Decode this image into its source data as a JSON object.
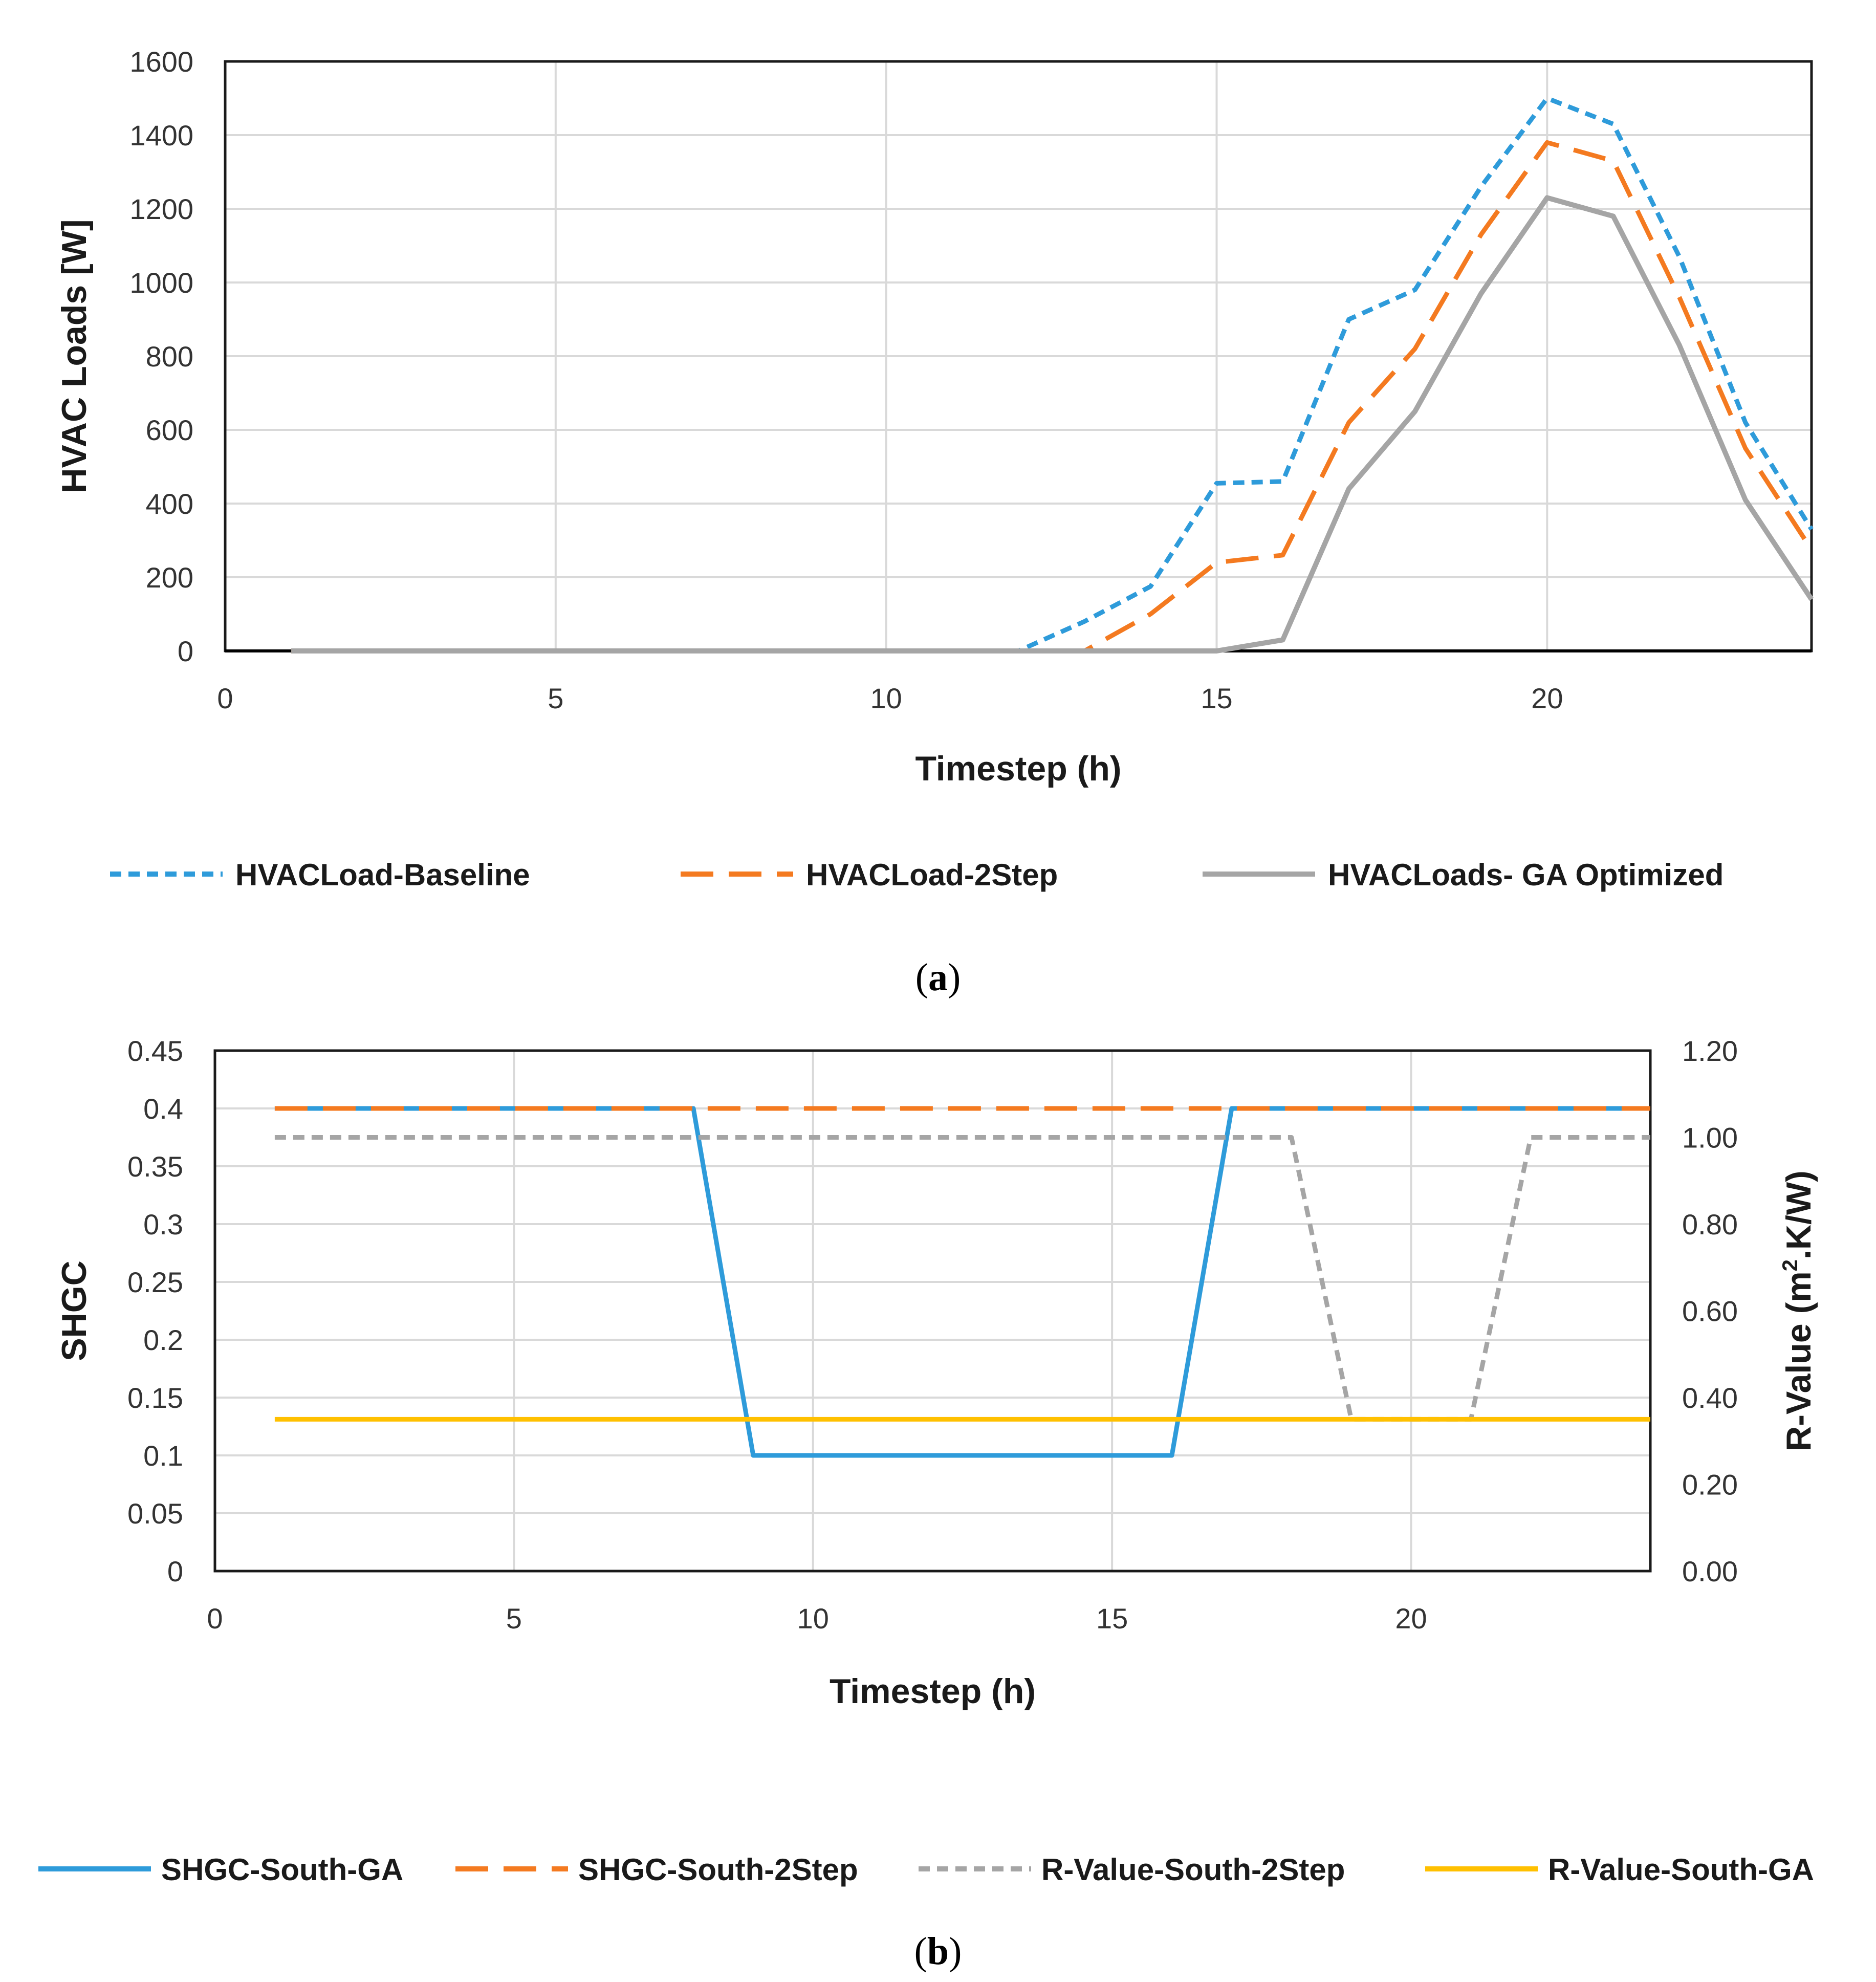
{
  "chart_data": [
    {
      "type": "line",
      "caption_label": "a",
      "xlabel": "Timestep (h)",
      "ylabel": "HVAC Loads [W]",
      "xlim": [
        0,
        24
      ],
      "ylim": [
        0,
        1600
      ],
      "x_ticks": [
        "0",
        "5",
        "10",
        "15",
        "20"
      ],
      "y_ticks": [
        "0",
        "200",
        "400",
        "600",
        "800",
        "1000",
        "1200",
        "1400",
        "1600"
      ],
      "grid": true,
      "legend_position": "bottom",
      "x": [
        1,
        2,
        3,
        4,
        5,
        6,
        7,
        8,
        9,
        10,
        11,
        12,
        13,
        14,
        15,
        16,
        17,
        18,
        19,
        20,
        21,
        22,
        23,
        24
      ],
      "series": [
        {
          "name": "HVACLoad-Baseline",
          "color": "#2E9BDA",
          "style": "dotted",
          "values": [
            0,
            0,
            0,
            0,
            0,
            0,
            0,
            0,
            0,
            0,
            0,
            0,
            80,
            175,
            455,
            460,
            900,
            980,
            1260,
            1500,
            1430,
            1070,
            620,
            330
          ]
        },
        {
          "name": "HVACLoad-2Step",
          "color": "#F47A20",
          "style": "dashed",
          "values": [
            0,
            0,
            0,
            0,
            0,
            0,
            0,
            0,
            0,
            0,
            0,
            0,
            0,
            100,
            240,
            260,
            620,
            820,
            1130,
            1380,
            1330,
            960,
            550,
            275
          ]
        },
        {
          "name": "HVACLoads- GA Optimized",
          "color": "#A5A5A5",
          "style": "solid",
          "values": [
            0,
            0,
            0,
            0,
            0,
            0,
            0,
            0,
            0,
            0,
            0,
            0,
            0,
            0,
            0,
            30,
            440,
            650,
            970,
            1230,
            1180,
            830,
            410,
            140
          ]
        }
      ]
    },
    {
      "type": "line",
      "caption_label": "b",
      "xlabel": "Timestep (h)",
      "ylabel": "SHGC",
      "y2label_main": "R-Value (m",
      "y2label_sup": "2",
      "y2label_end": ".K/W)",
      "xlim": [
        0,
        24
      ],
      "ylim": [
        0,
        0.45
      ],
      "y2lim": [
        0,
        1.2
      ],
      "x_ticks": [
        "0",
        "5",
        "10",
        "15",
        "20"
      ],
      "y_ticks": [
        "0",
        "0.05",
        "0.1",
        "0.15",
        "0.2",
        "0.25",
        "0.3",
        "0.35",
        "0.4",
        "0.45"
      ],
      "y2_ticks": [
        "0.00",
        "0.20",
        "0.40",
        "0.60",
        "0.80",
        "1.00",
        "1.20"
      ],
      "grid": true,
      "legend_position": "bottom",
      "x": [
        1,
        2,
        3,
        4,
        5,
        6,
        7,
        8,
        9,
        10,
        11,
        12,
        13,
        14,
        15,
        16,
        17,
        18,
        19,
        20,
        21,
        22,
        23,
        24
      ],
      "series": [
        {
          "name": "SHGC-South-GA",
          "color": "#2E9BDA",
          "style": "solid",
          "axis": "left",
          "values": [
            0.4,
            0.4,
            0.4,
            0.4,
            0.4,
            0.4,
            0.4,
            0.4,
            0.1,
            0.1,
            0.1,
            0.1,
            0.1,
            0.1,
            0.1,
            0.1,
            0.4,
            0.4,
            0.4,
            0.4,
            0.4,
            0.4,
            0.4,
            0.4
          ]
        },
        {
          "name": "SHGC-South-2Step",
          "color": "#F47A20",
          "style": "dashed",
          "axis": "left",
          "values": [
            0.4,
            0.4,
            0.4,
            0.4,
            0.4,
            0.4,
            0.4,
            0.4,
            0.4,
            0.4,
            0.4,
            0.4,
            0.4,
            0.4,
            0.4,
            0.4,
            0.4,
            0.4,
            0.4,
            0.4,
            0.4,
            0.4,
            0.4,
            0.4
          ]
        },
        {
          "name": "R-Value-South-2Step",
          "color": "#A5A5A5",
          "style": "dotted",
          "axis": "right",
          "values": [
            1.0,
            1.0,
            1.0,
            1.0,
            1.0,
            1.0,
            1.0,
            1.0,
            1.0,
            1.0,
            1.0,
            1.0,
            1.0,
            1.0,
            1.0,
            1.0,
            1.0,
            1.0,
            0.35,
            0.35,
            0.35,
            1.0,
            1.0,
            1.0
          ]
        },
        {
          "name": "R-Value-South-GA",
          "color": "#FFC000",
          "style": "solid",
          "axis": "right",
          "values": [
            0.35,
            0.35,
            0.35,
            0.35,
            0.35,
            0.35,
            0.35,
            0.35,
            0.35,
            0.35,
            0.35,
            0.35,
            0.35,
            0.35,
            0.35,
            0.35,
            0.35,
            0.35,
            0.35,
            0.35,
            0.35,
            0.35,
            0.35,
            0.35
          ]
        }
      ]
    }
  ]
}
